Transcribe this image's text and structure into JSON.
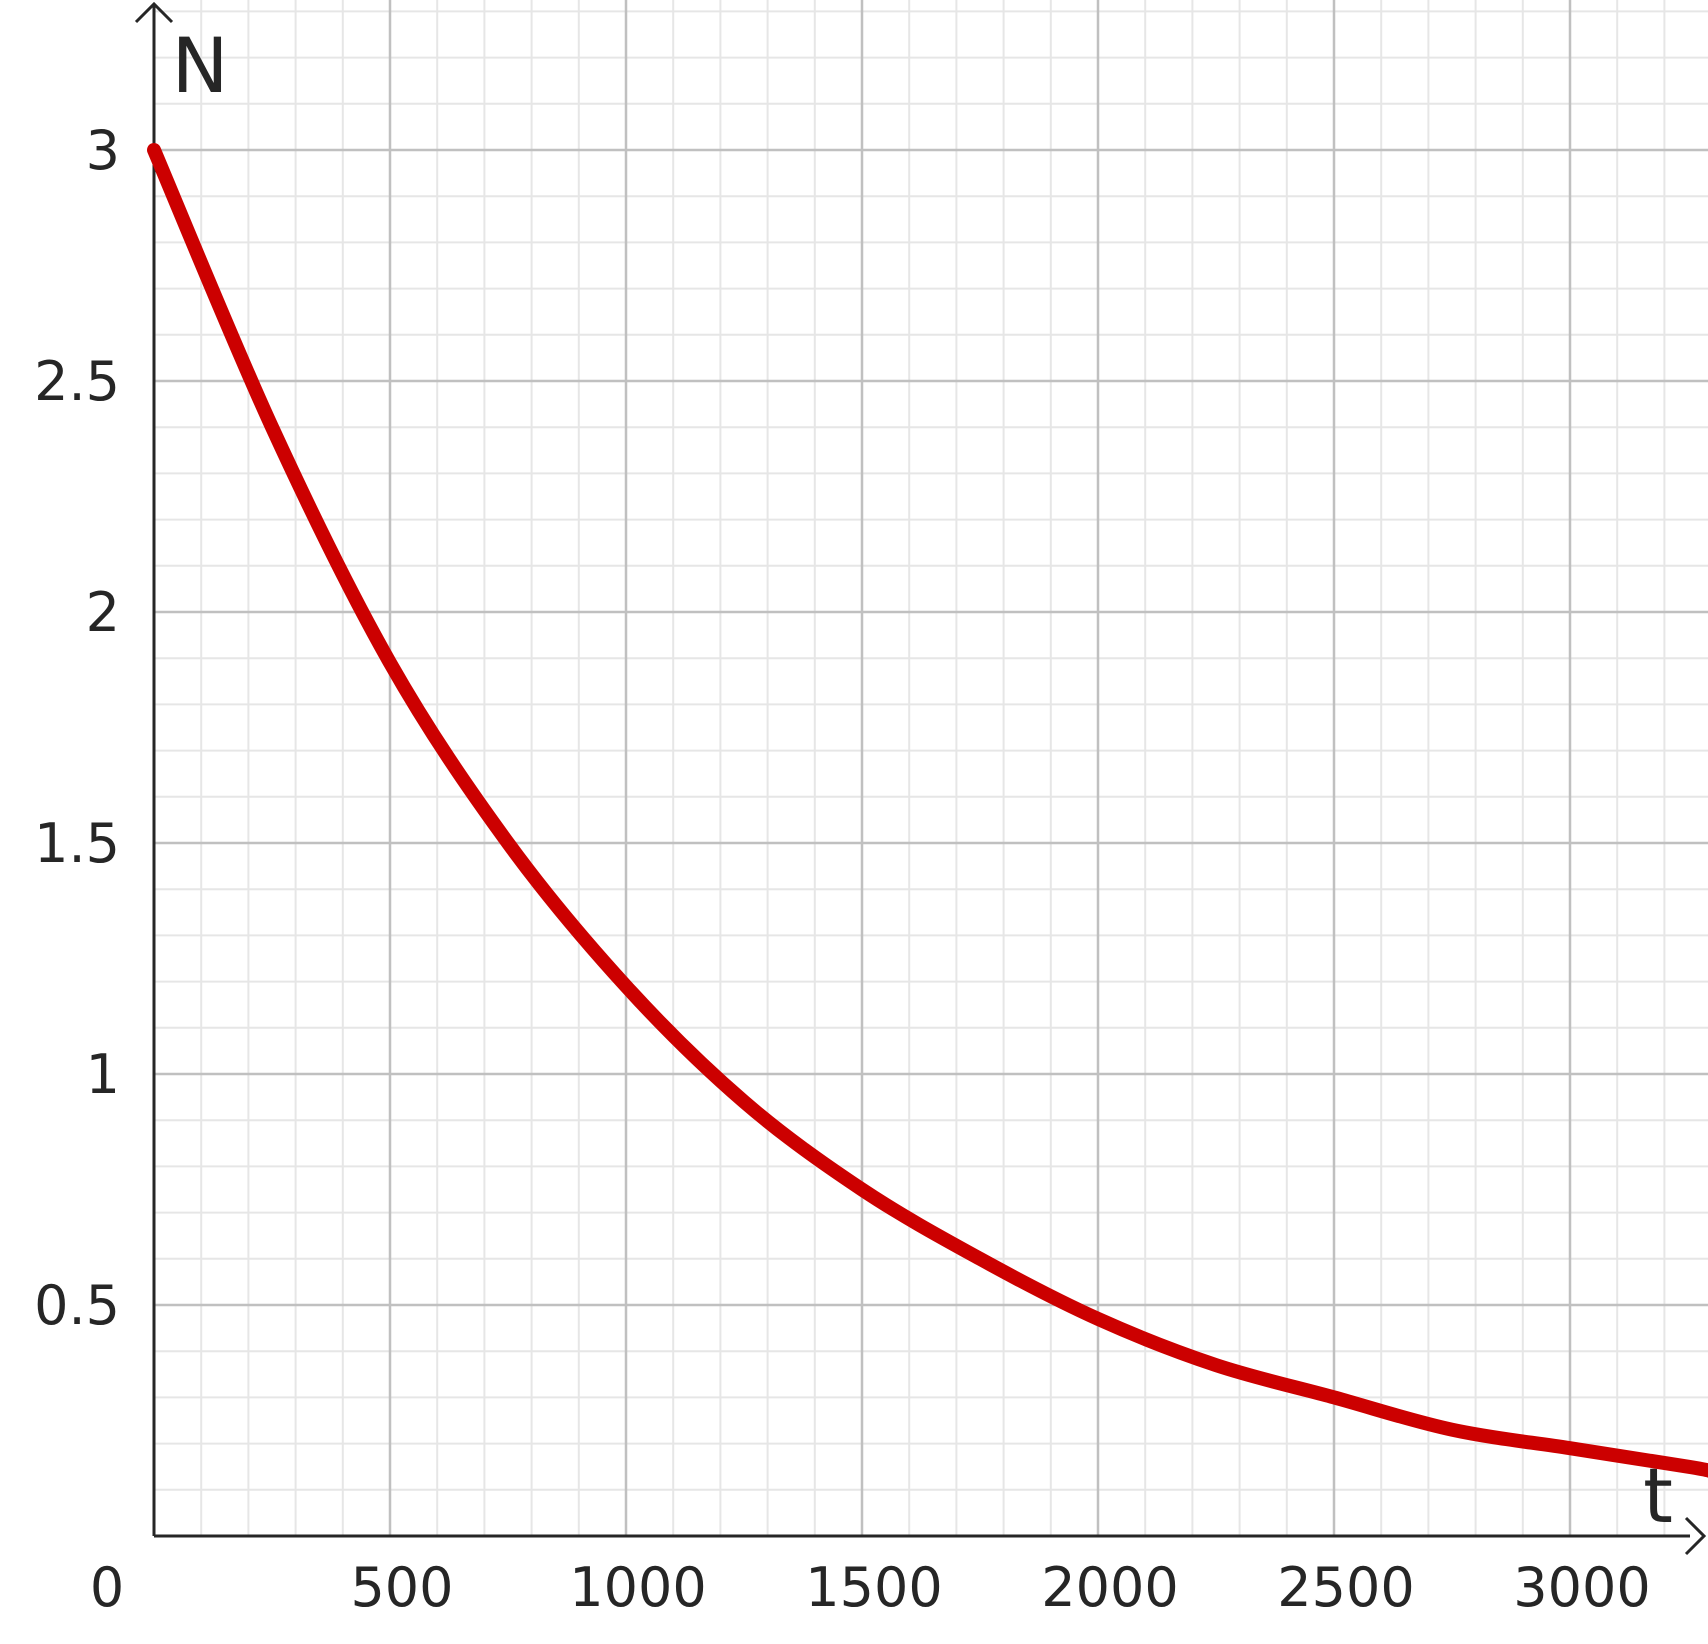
{
  "chart_data": {
    "type": "line",
    "xlabel": "t",
    "ylabel": "N",
    "origin_label": "0",
    "xlim": [
      0,
      3300
    ],
    "ylim": [
      0,
      3.2
    ],
    "x_ticks": [
      500,
      1000,
      1500,
      2000,
      2500,
      3000
    ],
    "x_tick_labels": [
      "500",
      "1000",
      "1500",
      "2000",
      "2500",
      "3000"
    ],
    "y_ticks": [
      0.5,
      1,
      1.5,
      2,
      2.5,
      3
    ],
    "y_tick_labels": [
      "0.5",
      "1",
      "1.5",
      "2",
      "2.5",
      "3"
    ],
    "grid": true,
    "x_minor_step": 100,
    "y_minor_step": 0.1,
    "series": [
      {
        "color": "#cc0000",
        "x": [
          0,
          250,
          500,
          750,
          1000,
          1250,
          1500,
          1750,
          2000,
          2250,
          2500,
          2750,
          3000,
          3250,
          3300
        ],
        "y": [
          3.0,
          2.4,
          1.89,
          1.5,
          1.19,
          0.94,
          0.75,
          0.6,
          0.47,
          0.37,
          0.3,
          0.23,
          0.19,
          0.15,
          0.14
        ]
      }
    ]
  },
  "colors": {
    "axis": "#262626",
    "major_grid": "#c0c0c0",
    "minor_grid": "#e6e6e6",
    "curve": "#cc0000"
  }
}
